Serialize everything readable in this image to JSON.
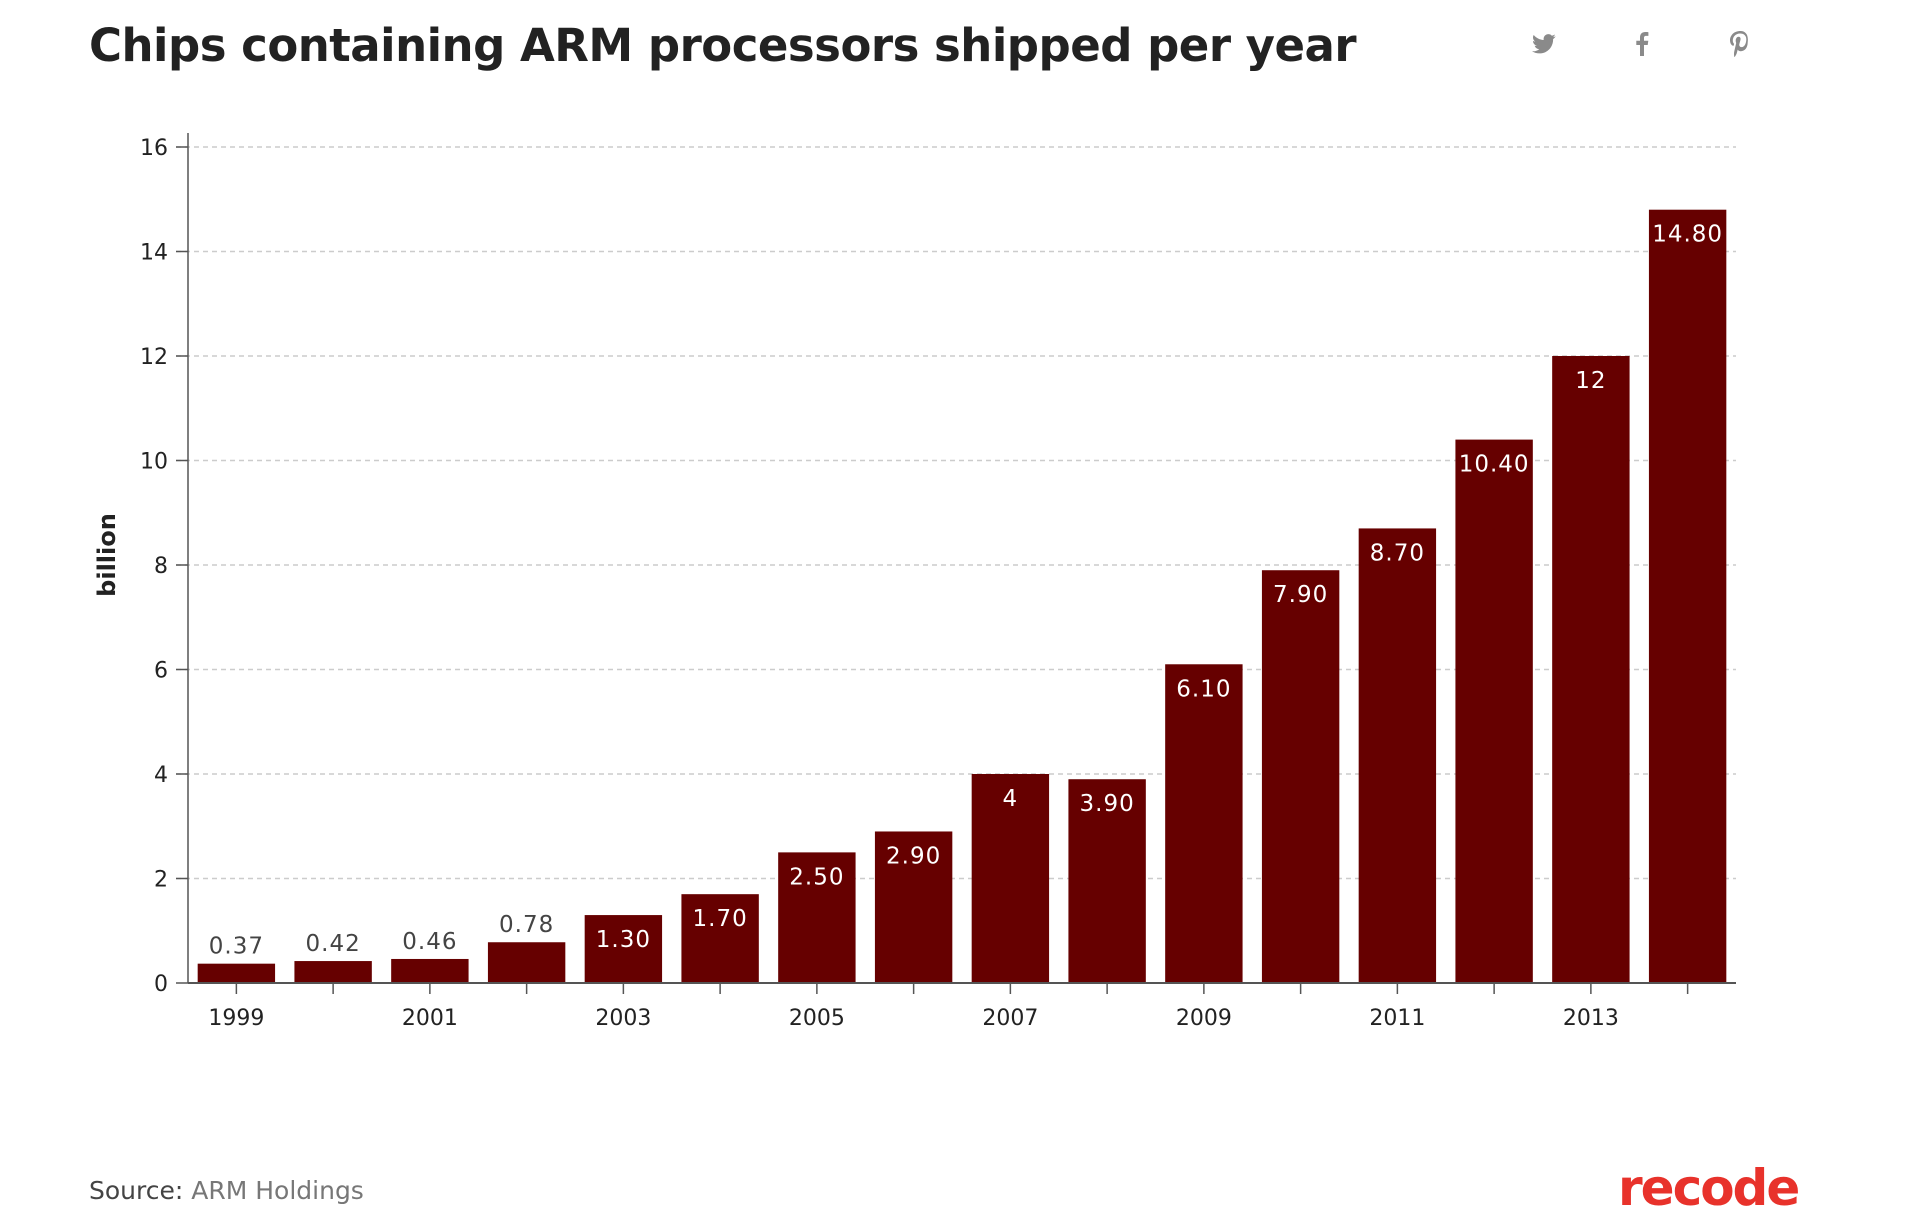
{
  "page": {
    "title": "Chips containing ARM processors shipped per year",
    "source_label": "Source:",
    "source_value": "ARM Holdings",
    "brand": "recode"
  },
  "share": {
    "icons": [
      "twitter-icon",
      "facebook-icon",
      "pinterest-icon"
    ]
  },
  "colors": {
    "bar": "#660000",
    "grid": "#cccccc",
    "axis": "#555555",
    "text": "#222222",
    "brand": "#e8322b",
    "share_icon": "#8a8a8a"
  },
  "chart_data": {
    "type": "bar",
    "title": "Chips containing ARM processors shipped per year",
    "xlabel": "",
    "ylabel": "billion",
    "ylim": [
      0,
      16
    ],
    "yticks": [
      0,
      2,
      4,
      6,
      8,
      10,
      12,
      14,
      16
    ],
    "categories": [
      "1999",
      "2000",
      "2001",
      "2002",
      "2003",
      "2004",
      "2005",
      "2006",
      "2007",
      "2008",
      "2009",
      "2010",
      "2011",
      "2012",
      "2013",
      "2014"
    ],
    "x_tick_labels": [
      "1999",
      "",
      "2001",
      "",
      "2003",
      "",
      "2005",
      "",
      "2007",
      "",
      "2009",
      "",
      "2011",
      "",
      "2013",
      ""
    ],
    "values": [
      0.37,
      0.42,
      0.46,
      0.78,
      1.3,
      1.7,
      2.5,
      2.9,
      4,
      3.9,
      6.1,
      7.9,
      8.7,
      10.4,
      12,
      14.8
    ],
    "data_labels": [
      "0.37",
      "0.42",
      "0.46",
      "0.78",
      "1.30",
      "1.70",
      "2.50",
      "2.90",
      "4",
      "3.90",
      "6.10",
      "7.90",
      "8.70",
      "10.40",
      "12",
      "14.80"
    ],
    "grid": true,
    "legend": "none"
  }
}
